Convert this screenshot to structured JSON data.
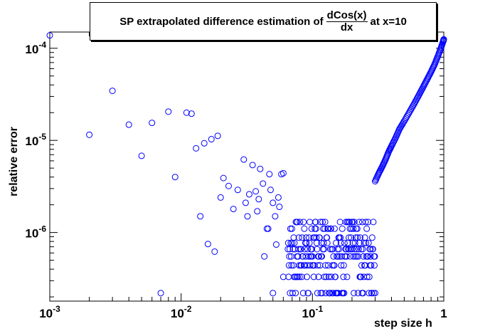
{
  "chart_data": {
    "type": "scatter",
    "title": {
      "prefix": "SP extrapolated difference estimation of",
      "fraction_numerator": "dCos(x)",
      "fraction_denominator": "dx",
      "suffix": "at x=10"
    },
    "xlabel": "step size h",
    "ylabel": "relative error",
    "xscale": "log",
    "yscale": "log",
    "xlim": [
      0.001,
      1.0
    ],
    "ylim": [
      1.8e-07,
      0.00015
    ],
    "x_major_ticks": [
      {
        "value": 0.001,
        "base": "10",
        "exp": "-3"
      },
      {
        "value": 0.01,
        "base": "10",
        "exp": "-2"
      },
      {
        "value": 0.1,
        "base": "10",
        "exp": "-1"
      },
      {
        "value": 1,
        "base": "1",
        "exp": ""
      }
    ],
    "y_major_ticks": [
      {
        "value": 1e-06,
        "base": "10",
        "exp": "-6"
      },
      {
        "value": 1e-05,
        "base": "10",
        "exp": "-5"
      },
      {
        "value": 0.0001,
        "base": "10",
        "exp": "-4"
      }
    ],
    "marker": "open-circle",
    "marker_color": "#0000ff",
    "grid": false,
    "legend": "none",
    "points_sparse": [
      [
        0.001,
        0.000138
      ],
      [
        0.002,
        1.15e-05
      ],
      [
        0.003,
        3.45e-05
      ],
      [
        0.004,
        1.48e-05
      ],
      [
        0.005,
        6.8e-06
      ],
      [
        0.006,
        1.55e-05
      ],
      [
        0.007,
        2.2e-07
      ],
      [
        0.008,
        2.05e-05
      ],
      [
        0.009,
        4e-06
      ],
      [
        0.011,
        2e-05
      ],
      [
        0.012,
        1.95e-05
      ],
      [
        0.013,
        8.2e-06
      ],
      [
        0.014,
        1.5e-06
      ],
      [
        0.015,
        9.3e-06
      ],
      [
        0.016,
        7.5e-07
      ],
      [
        0.017,
        1.03e-05
      ],
      [
        0.018,
        6.2e-07
      ],
      [
        0.019,
        1.12e-05
      ],
      [
        0.02,
        2.4e-06
      ],
      [
        0.021,
        3.9e-06
      ],
      [
        0.023,
        3.2e-06
      ],
      [
        0.025,
        1.8e-06
      ],
      [
        0.027,
        2.9e-06
      ],
      [
        0.03,
        6.2e-06
      ],
      [
        0.031,
        2.1e-06
      ],
      [
        0.032,
        1.5e-06
      ],
      [
        0.033,
        2.6e-06
      ],
      [
        0.035,
        5.4e-06
      ],
      [
        0.037,
        2.8e-06
      ],
      [
        0.038,
        1.7e-06
      ],
      [
        0.039,
        2.3e-06
      ],
      [
        0.04,
        4.9e-06
      ],
      [
        0.042,
        3.4e-06
      ],
      [
        0.043,
        5.5e-07
      ],
      [
        0.045,
        1.1e-06
      ],
      [
        0.046,
        1.1e-06
      ],
      [
        0.047,
        4.3e-06
      ],
      [
        0.048,
        2.9e-06
      ],
      [
        0.05,
        2.1e-06
      ],
      [
        0.05,
        2.2e-07
      ],
      [
        0.052,
        1.5e-06
      ],
      [
        0.053,
        7.4e-07
      ],
      [
        0.055,
        2.4e-06
      ],
      [
        0.056,
        1.9e-06
      ],
      [
        0.058,
        4.3e-06
      ],
      [
        0.06,
        4.4e-06
      ],
      [
        0.06,
        3.3e-07
      ]
    ],
    "points_diagonal": [
      [
        0.3,
        3.6e-06
      ],
      [
        0.32,
        4.4e-06
      ],
      [
        0.34,
        5.2e-06
      ],
      [
        0.36,
        6.2e-06
      ],
      [
        0.38,
        7.5e-06
      ],
      [
        0.4,
        8.7e-06
      ],
      [
        0.43,
        1.07e-05
      ],
      [
        0.46,
        1.33e-05
      ],
      [
        0.5,
        1.62e-05
      ],
      [
        0.55,
        2.05e-05
      ],
      [
        0.6,
        2.55e-05
      ],
      [
        0.65,
        3.15e-05
      ],
      [
        0.7,
        3.85e-05
      ],
      [
        0.75,
        4.65e-05
      ],
      [
        0.8,
        5.55e-05
      ],
      [
        0.85,
        6.65e-05
      ],
      [
        0.9,
        8.15e-05
      ],
      [
        0.95,
        0.0001
      ],
      [
        0.99,
        0.000119
      ],
      [
        1.0,
        0.000125
      ]
    ],
    "quantized_levels": [
      2.2e-07,
      3.3e-07,
      4.4e-07,
      5.5e-07,
      6.6e-07,
      7.7e-07,
      8.8e-07,
      1.1e-06,
      1.3e-06
    ],
    "quantized_x_range": [
      0.065,
      0.3
    ]
  }
}
